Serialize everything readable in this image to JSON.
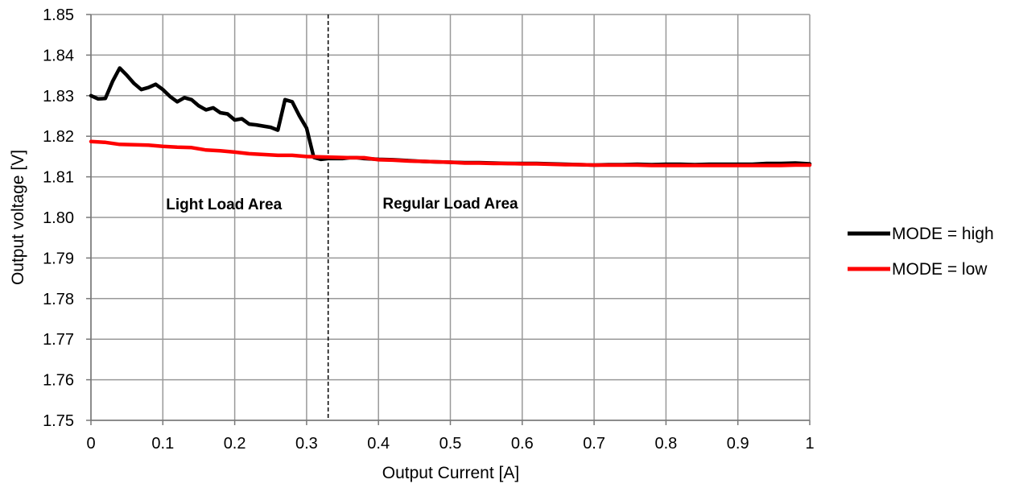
{
  "chart_data": {
    "type": "line",
    "xlabel": "Output Current [A]",
    "ylabel": "Output voltage [V]",
    "xlim": [
      0,
      1
    ],
    "ylim": [
      1.75,
      1.85
    ],
    "x_ticks": [
      "0",
      "0.1",
      "0.2",
      "0.3",
      "0.4",
      "0.5",
      "0.6",
      "0.7",
      "0.8",
      "0.9",
      "1"
    ],
    "y_ticks": [
      "1.75",
      "1.76",
      "1.77",
      "1.78",
      "1.79",
      "1.80",
      "1.81",
      "1.82",
      "1.83",
      "1.84",
      "1.85"
    ],
    "grid": true,
    "legend_position": "right",
    "divider_x": 0.33,
    "annotations": [
      {
        "text": "Light Load Area",
        "x": 0.185,
        "y": 1.802
      },
      {
        "text": "Regular Load Area",
        "x": 0.5,
        "y": 1.8022
      }
    ],
    "series": [
      {
        "name": "MODE = high",
        "color": "#000000",
        "points": [
          [
            0.0,
            1.83
          ],
          [
            0.01,
            1.8292
          ],
          [
            0.02,
            1.8293
          ],
          [
            0.03,
            1.8335
          ],
          [
            0.04,
            1.8368
          ],
          [
            0.05,
            1.835
          ],
          [
            0.06,
            1.833
          ],
          [
            0.07,
            1.8315
          ],
          [
            0.08,
            1.832
          ],
          [
            0.09,
            1.8328
          ],
          [
            0.1,
            1.8315
          ],
          [
            0.11,
            1.8298
          ],
          [
            0.12,
            1.8285
          ],
          [
            0.13,
            1.8295
          ],
          [
            0.14,
            1.829
          ],
          [
            0.15,
            1.8275
          ],
          [
            0.16,
            1.8265
          ],
          [
            0.17,
            1.827
          ],
          [
            0.18,
            1.8258
          ],
          [
            0.19,
            1.8255
          ],
          [
            0.2,
            1.824
          ],
          [
            0.21,
            1.8243
          ],
          [
            0.22,
            1.823
          ],
          [
            0.23,
            1.8228
          ],
          [
            0.24,
            1.8225
          ],
          [
            0.25,
            1.8222
          ],
          [
            0.26,
            1.8215
          ],
          [
            0.27,
            1.829
          ],
          [
            0.28,
            1.8285
          ],
          [
            0.29,
            1.825
          ],
          [
            0.3,
            1.822
          ],
          [
            0.31,
            1.8148
          ],
          [
            0.32,
            1.8143
          ],
          [
            0.33,
            1.8145
          ],
          [
            0.34,
            1.8145
          ],
          [
            0.35,
            1.8145
          ],
          [
            0.36,
            1.8147
          ],
          [
            0.37,
            1.8147
          ],
          [
            0.38,
            1.8145
          ],
          [
            0.39,
            1.8144
          ],
          [
            0.4,
            1.8143
          ],
          [
            0.42,
            1.8142
          ],
          [
            0.44,
            1.814
          ],
          [
            0.46,
            1.8138
          ],
          [
            0.48,
            1.8137
          ],
          [
            0.5,
            1.8136
          ],
          [
            0.52,
            1.8135
          ],
          [
            0.54,
            1.8135
          ],
          [
            0.56,
            1.8134
          ],
          [
            0.58,
            1.8133
          ],
          [
            0.6,
            1.8133
          ],
          [
            0.62,
            1.8133
          ],
          [
            0.64,
            1.8132
          ],
          [
            0.66,
            1.8131
          ],
          [
            0.68,
            1.813
          ],
          [
            0.7,
            1.8129
          ],
          [
            0.72,
            1.813
          ],
          [
            0.74,
            1.813
          ],
          [
            0.76,
            1.8131
          ],
          [
            0.78,
            1.813
          ],
          [
            0.8,
            1.8131
          ],
          [
            0.82,
            1.8131
          ],
          [
            0.84,
            1.813
          ],
          [
            0.86,
            1.8131
          ],
          [
            0.88,
            1.8131
          ],
          [
            0.9,
            1.8131
          ],
          [
            0.92,
            1.8131
          ],
          [
            0.94,
            1.8133
          ],
          [
            0.96,
            1.8133
          ],
          [
            0.98,
            1.8134
          ],
          [
            1.0,
            1.8132
          ]
        ]
      },
      {
        "name": "MODE = low",
        "color": "#ff0000",
        "points": [
          [
            0.0,
            1.8187
          ],
          [
            0.02,
            1.8185
          ],
          [
            0.04,
            1.818
          ],
          [
            0.06,
            1.8179
          ],
          [
            0.08,
            1.8178
          ],
          [
            0.1,
            1.8175
          ],
          [
            0.12,
            1.8173
          ],
          [
            0.14,
            1.8172
          ],
          [
            0.16,
            1.8166
          ],
          [
            0.18,
            1.8164
          ],
          [
            0.2,
            1.8161
          ],
          [
            0.22,
            1.8157
          ],
          [
            0.24,
            1.8155
          ],
          [
            0.26,
            1.8153
          ],
          [
            0.28,
            1.8153
          ],
          [
            0.3,
            1.815
          ],
          [
            0.32,
            1.8149
          ],
          [
            0.34,
            1.8148
          ],
          [
            0.36,
            1.8147
          ],
          [
            0.38,
            1.8147
          ],
          [
            0.4,
            1.8142
          ],
          [
            0.42,
            1.8141
          ],
          [
            0.44,
            1.8139
          ],
          [
            0.46,
            1.8138
          ],
          [
            0.48,
            1.8137
          ],
          [
            0.5,
            1.8136
          ],
          [
            0.52,
            1.8134
          ],
          [
            0.54,
            1.8134
          ],
          [
            0.56,
            1.8133
          ],
          [
            0.58,
            1.8133
          ],
          [
            0.6,
            1.8132
          ],
          [
            0.62,
            1.8132
          ],
          [
            0.64,
            1.8131
          ],
          [
            0.66,
            1.813
          ],
          [
            0.68,
            1.813
          ],
          [
            0.7,
            1.8129
          ],
          [
            0.72,
            1.8129
          ],
          [
            0.74,
            1.8129
          ],
          [
            0.76,
            1.8129
          ],
          [
            0.78,
            1.8128
          ],
          [
            0.8,
            1.8128
          ],
          [
            0.82,
            1.8128
          ],
          [
            0.84,
            1.8128
          ],
          [
            0.86,
            1.8128
          ],
          [
            0.88,
            1.8128
          ],
          [
            0.9,
            1.8128
          ],
          [
            0.92,
            1.8128
          ],
          [
            0.94,
            1.8128
          ],
          [
            0.96,
            1.8128
          ],
          [
            0.98,
            1.8129
          ],
          [
            1.0,
            1.8129
          ]
        ]
      }
    ]
  }
}
